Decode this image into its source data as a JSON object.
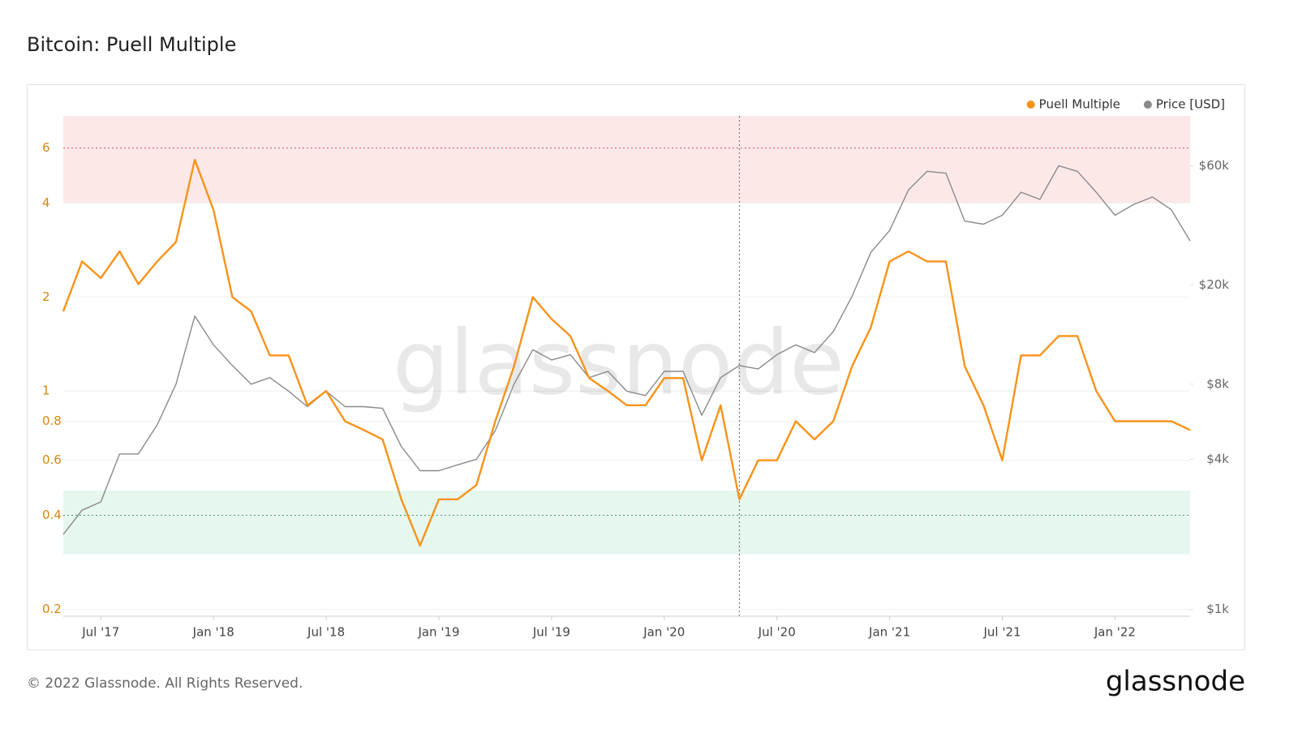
{
  "chart_data": {
    "type": "line",
    "title": "Bitcoin: Puell Multiple",
    "x": [
      "2017-05",
      "2017-06",
      "2017-07",
      "2017-08",
      "2017-09",
      "2017-10",
      "2017-11",
      "2017-12",
      "2018-01",
      "2018-02",
      "2018-03",
      "2018-04",
      "2018-05",
      "2018-06",
      "2018-07",
      "2018-08",
      "2018-09",
      "2018-10",
      "2018-11",
      "2018-12",
      "2019-01",
      "2019-02",
      "2019-03",
      "2019-04",
      "2019-05",
      "2019-06",
      "2019-07",
      "2019-08",
      "2019-09",
      "2019-10",
      "2019-11",
      "2019-12",
      "2020-01",
      "2020-02",
      "2020-03",
      "2020-04",
      "2020-05",
      "2020-06",
      "2020-07",
      "2020-08",
      "2020-09",
      "2020-10",
      "2020-11",
      "2020-12",
      "2021-01",
      "2021-02",
      "2021-03",
      "2021-04",
      "2021-05",
      "2021-06",
      "2021-07",
      "2021-08",
      "2021-09",
      "2021-10",
      "2021-11",
      "2021-12",
      "2022-01",
      "2022-02",
      "2022-03",
      "2022-04",
      "2022-05"
    ],
    "xlim": [
      "2017-05",
      "2022-05"
    ],
    "xticks": [
      {
        "value": "2017-07",
        "label": "Jul '17"
      },
      {
        "value": "2018-01",
        "label": "Jan '18"
      },
      {
        "value": "2018-07",
        "label": "Jul '18"
      },
      {
        "value": "2019-01",
        "label": "Jan '19"
      },
      {
        "value": "2019-07",
        "label": "Jul '19"
      },
      {
        "value": "2020-01",
        "label": "Jan '20"
      },
      {
        "value": "2020-07",
        "label": "Jul '20"
      },
      {
        "value": "2021-01",
        "label": "Jan '21"
      },
      {
        "value": "2021-07",
        "label": "Jul '21"
      },
      {
        "value": "2022-01",
        "label": "Jan '22"
      }
    ],
    "ylim": [
      0.19,
      7.6
    ],
    "yticks": [
      0.2,
      0.4,
      0.6,
      0.8,
      1,
      2,
      4,
      6
    ],
    "ylog": true,
    "y2lim": [
      940,
      95000
    ],
    "y2ticks": [
      {
        "value": 1000,
        "label": "$1k"
      },
      {
        "value": 4000,
        "label": "$4k"
      },
      {
        "value": 8000,
        "label": "$8k"
      },
      {
        "value": 20000,
        "label": "$20k"
      },
      {
        "value": 60000,
        "label": "$60k"
      }
    ],
    "y2log": true,
    "bands": [
      {
        "from": 4,
        "to": 7.6,
        "color": "#fde8e8"
      },
      {
        "from": 0.3,
        "to": 0.48,
        "color": "#e6f7ee"
      }
    ],
    "reference_lines": [
      {
        "value": 6,
        "color": "#e05050"
      },
      {
        "value": 0.4,
        "color": "#40a070"
      }
    ],
    "vlines": [
      "2020-05"
    ],
    "legend": "top-right",
    "watermark": "glassnode",
    "series": [
      {
        "name": "Puell Multiple",
        "color": "#f7931a",
        "values": [
          1.8,
          2.6,
          2.3,
          2.8,
          2.2,
          2.6,
          3.0,
          5.5,
          3.8,
          2.0,
          1.8,
          1.3,
          1.3,
          0.9,
          1.0,
          0.8,
          0.75,
          0.7,
          0.45,
          0.32,
          0.45,
          0.45,
          0.5,
          0.8,
          1.2,
          2.0,
          1.7,
          1.5,
          1.1,
          1.0,
          0.9,
          0.9,
          1.1,
          1.1,
          0.6,
          0.9,
          0.45,
          0.6,
          0.6,
          0.8,
          0.7,
          0.8,
          1.2,
          1.6,
          2.6,
          2.8,
          2.6,
          2.6,
          1.2,
          0.9,
          0.6,
          1.3,
          1.3,
          1.5,
          1.5,
          1.0,
          0.8,
          0.8,
          0.8,
          0.8,
          0.75
        ]
      },
      {
        "name": "Price [USD]",
        "color": "#8a8a8a",
        "axis": "y2",
        "values": [
          2000,
          2500,
          2700,
          4200,
          4200,
          5500,
          8000,
          15000,
          11500,
          9500,
          8000,
          8500,
          7500,
          6500,
          7500,
          6500,
          6500,
          6400,
          4500,
          3600,
          3600,
          3800,
          4000,
          5200,
          8000,
          11000,
          10000,
          10500,
          8500,
          9000,
          7500,
          7200,
          9000,
          9000,
          6000,
          8500,
          9500,
          9200,
          10500,
          11500,
          10700,
          13000,
          18000,
          27000,
          33000,
          48000,
          57000,
          56000,
          36000,
          35000,
          38000,
          47000,
          44000,
          60000,
          57000,
          47000,
          38000,
          42000,
          45000,
          40000,
          30000
        ]
      }
    ]
  },
  "footer": "© 2022 Glassnode. All Rights Reserved.",
  "logo": "glassnode"
}
